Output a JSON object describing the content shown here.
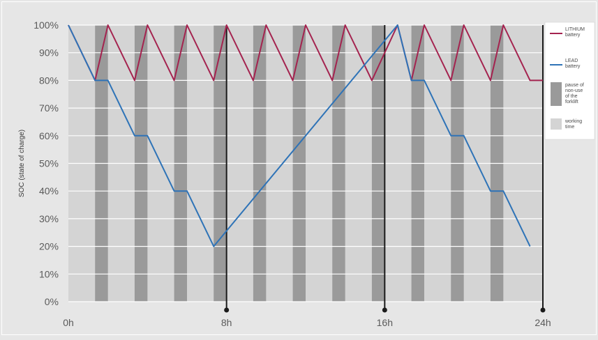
{
  "chart_data": {
    "type": "line",
    "title": "",
    "xlabel": "",
    "ylabel": "SOC (state of charge)",
    "xlim": [
      0,
      24
    ],
    "ylim": [
      0,
      100
    ],
    "x_ticks": [
      {
        "value": 0,
        "label": "0h"
      },
      {
        "value": 8,
        "label": "8h"
      },
      {
        "value": 16,
        "label": "16h"
      },
      {
        "value": 24,
        "label": "24h"
      }
    ],
    "y_ticks": [
      {
        "value": 0,
        "label": "0%"
      },
      {
        "value": 10,
        "label": "10%"
      },
      {
        "value": 20,
        "label": "20%"
      },
      {
        "value": 30,
        "label": "30%"
      },
      {
        "value": 40,
        "label": "40%"
      },
      {
        "value": 50,
        "label": "50%"
      },
      {
        "value": 60,
        "label": "60%"
      },
      {
        "value": 70,
        "label": "70%"
      },
      {
        "value": 80,
        "label": "80%"
      },
      {
        "value": 90,
        "label": "90%"
      },
      {
        "value": 100,
        "label": "100%"
      }
    ],
    "shift_markers": [
      8,
      16,
      24
    ],
    "pause_periods": [
      [
        1.35,
        2.0
      ],
      [
        3.35,
        4.0
      ],
      [
        5.35,
        6.0
      ],
      [
        7.35,
        8.0
      ],
      [
        9.35,
        10.0
      ],
      [
        11.35,
        12.0
      ],
      [
        13.35,
        14.0
      ],
      [
        15.35,
        16.0
      ],
      [
        17.35,
        18.0
      ],
      [
        19.35,
        20.0
      ],
      [
        21.35,
        22.0
      ]
    ],
    "series": [
      {
        "name": "LITHIUM battery",
        "color": "#a4234f",
        "points": [
          [
            0,
            100
          ],
          [
            1.35,
            80
          ],
          [
            2,
            100
          ],
          [
            3.35,
            80
          ],
          [
            4,
            100
          ],
          [
            5.35,
            80
          ],
          [
            6,
            100
          ],
          [
            7.35,
            80
          ],
          [
            8,
            100
          ],
          [
            9.35,
            80
          ],
          [
            10,
            100
          ],
          [
            11.35,
            80
          ],
          [
            12,
            100
          ],
          [
            13.35,
            80
          ],
          [
            14,
            100
          ],
          [
            15.35,
            80
          ],
          [
            16.65,
            100
          ],
          [
            17.35,
            80
          ],
          [
            18,
            100
          ],
          [
            19.35,
            80
          ],
          [
            20,
            100
          ],
          [
            21.35,
            80
          ],
          [
            22,
            100
          ],
          [
            23.35,
            80
          ],
          [
            24,
            80
          ]
        ]
      },
      {
        "name": "LEAD battery",
        "color": "#2e73b7",
        "points": [
          [
            0,
            100
          ],
          [
            1.35,
            80
          ],
          [
            2,
            80
          ],
          [
            3.35,
            60
          ],
          [
            4,
            60
          ],
          [
            5.35,
            40
          ],
          [
            6,
            40
          ],
          [
            7.35,
            20
          ],
          [
            16.65,
            100
          ],
          [
            17.35,
            80
          ],
          [
            18,
            80
          ],
          [
            19.35,
            60
          ],
          [
            20,
            60
          ],
          [
            21.35,
            40
          ],
          [
            22,
            40
          ],
          [
            23.35,
            20
          ]
        ]
      }
    ],
    "legend": {
      "placement": "right",
      "items": [
        {
          "kind": "line",
          "name": "LITHIUM battery",
          "lines": [
            "LITHIUM",
            "battery"
          ],
          "color": "#a4234f"
        },
        {
          "kind": "line",
          "name": "LEAD battery",
          "lines": [
            "LEAD",
            "battery"
          ],
          "color": "#2e73b7"
        },
        {
          "kind": "swatch",
          "name": "pause of non-use of the forklift",
          "lines": [
            "pause of",
            "non-use",
            "of the",
            "forklift"
          ],
          "color": "#9a9a9a"
        },
        {
          "kind": "swatch",
          "name": "working time",
          "lines": [
            "working",
            "time"
          ],
          "color": "#d4d4d4"
        }
      ]
    },
    "grid": true,
    "colors": {
      "pause": "#9a9a9a",
      "working": "#d4d4d4",
      "grid": "#ffffff",
      "marker": "#1a1a1a"
    }
  }
}
